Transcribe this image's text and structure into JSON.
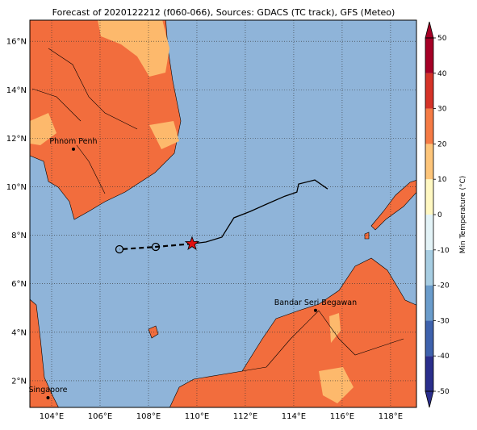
{
  "map": {
    "title": "Forecast of 2020122212 (f060-066), Sources: GDACS (TC track), GFS (Meteo)",
    "xlim": [
      103.1,
      119.07
    ],
    "ylim": [
      0.9,
      16.87
    ],
    "xticks": [
      {
        "value": 104,
        "label": "104°E"
      },
      {
        "value": 106,
        "label": "106°E"
      },
      {
        "value": 108,
        "label": "108°E"
      },
      {
        "value": 110,
        "label": "110°E"
      },
      {
        "value": 112,
        "label": "112°E"
      },
      {
        "value": 114,
        "label": "114°E"
      },
      {
        "value": 116,
        "label": "116°E"
      },
      {
        "value": 118,
        "label": "118°E"
      }
    ],
    "yticks": [
      {
        "value": 2,
        "label": "2°N"
      },
      {
        "value": 4,
        "label": "4°N"
      },
      {
        "value": 6,
        "label": "6°N"
      },
      {
        "value": 8,
        "label": "8°N"
      },
      {
        "value": 10,
        "label": "10°N"
      },
      {
        "value": 12,
        "label": "12°N"
      },
      {
        "value": 14,
        "label": "14°N"
      },
      {
        "value": 16,
        "label": "16°N"
      }
    ],
    "grid": true,
    "colorbar": {
      "label": "Min Temperature (°C)",
      "lim": [
        -50,
        50
      ],
      "ticks": [
        -50,
        -40,
        -30,
        -20,
        -10,
        0,
        10,
        20,
        30,
        40,
        50
      ],
      "colors": [
        "#2a2e8c",
        "#3e62ad",
        "#6a9ccb",
        "#a7cde2",
        "#e3f3f7",
        "#fff8c2",
        "#fdc57a",
        "#f57b45",
        "#d53328",
        "#a50026"
      ]
    },
    "cities": [
      {
        "name": "Phnom Penh",
        "lon": 104.9,
        "lat": 11.55
      },
      {
        "name": "Bandar Seri Begawan",
        "lon": 114.9,
        "lat": 4.9
      },
      {
        "name": "Singapore",
        "lon": 103.85,
        "lat": 1.3
      }
    ],
    "observed_track": {
      "lon": [
        109.8,
        110.37,
        111.03,
        111.53,
        112.2,
        112.87,
        113.63,
        114.13,
        114.2,
        114.87,
        115.4
      ],
      "lat": [
        7.65,
        7.72,
        7.92,
        8.72,
        8.98,
        9.28,
        9.61,
        9.78,
        10.11,
        10.28,
        9.91
      ]
    },
    "forecast_track": {
      "lon": [
        109.8,
        108.3,
        106.8
      ],
      "lat": [
        7.65,
        7.52,
        7.42
      ]
    }
  }
}
